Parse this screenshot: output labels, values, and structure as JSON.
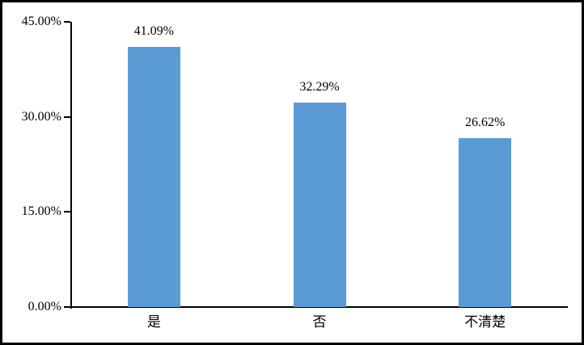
{
  "frame": {
    "border_color": "#000000",
    "background": "#FFFFFF"
  },
  "chart_data": {
    "type": "bar",
    "categories": [
      "是",
      "否",
      "不清楚"
    ],
    "values": [
      41.09,
      32.29,
      26.62
    ],
    "data_labels": [
      "41.09%",
      "32.29%",
      "26.62%"
    ],
    "y_ticks": [
      {
        "value": 0,
        "label": "0.00%"
      },
      {
        "value": 15,
        "label": "15.00%"
      },
      {
        "value": 30,
        "label": "30.00%"
      },
      {
        "value": 45,
        "label": "45.00%"
      }
    ],
    "ylim": [
      0,
      45
    ],
    "bar_color": "#5B9BD5",
    "axis_color": "#000000",
    "text_color": "#000000",
    "grid": false,
    "legend": "none"
  }
}
